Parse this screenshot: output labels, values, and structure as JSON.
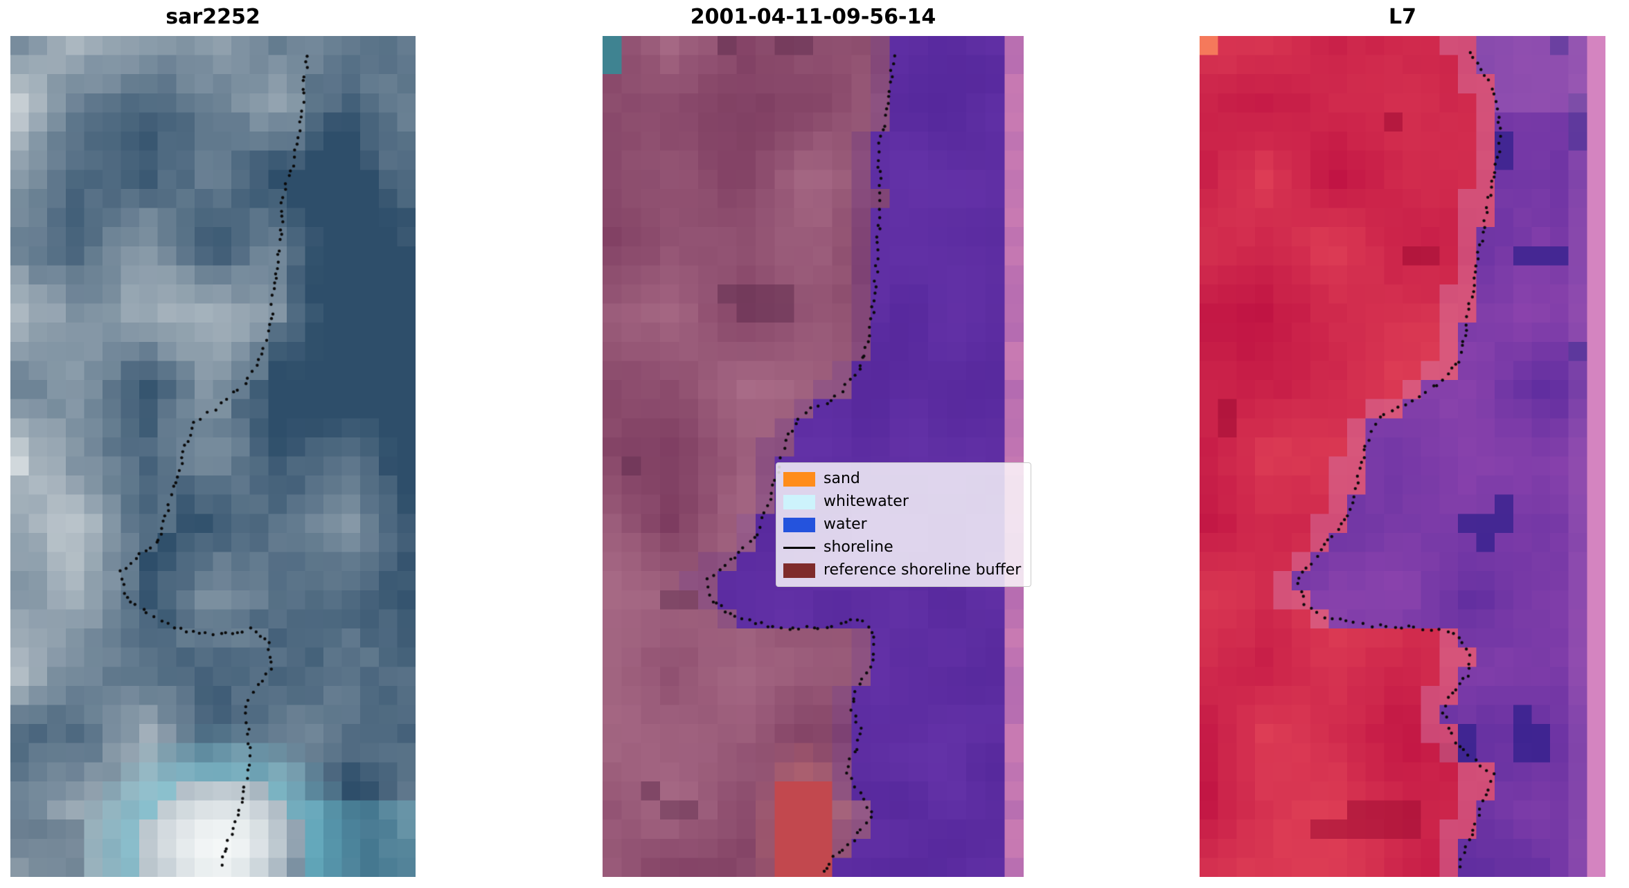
{
  "figure": {
    "background": "#ffffff",
    "panels": [
      {
        "id": "sar",
        "title": "sar2252",
        "seed": 101,
        "palette": {
          "dark": "#2e4e6a",
          "mid": "#5d7b92",
          "light": "#d2d8db",
          "white": "#f4f7f7",
          "cyan": "#7cd9e8",
          "deep": "#24405a"
        },
        "shoreline": [
          [
            0.735,
            0.022
          ],
          [
            0.725,
            0.06
          ],
          [
            0.715,
            0.105
          ],
          [
            0.7,
            0.145
          ],
          [
            0.672,
            0.19
          ],
          [
            0.668,
            0.235
          ],
          [
            0.662,
            0.27
          ],
          [
            0.648,
            0.315
          ],
          [
            0.638,
            0.355
          ],
          [
            0.615,
            0.385
          ],
          [
            0.585,
            0.41
          ],
          [
            0.5,
            0.445
          ],
          [
            0.455,
            0.458
          ],
          [
            0.43,
            0.49
          ],
          [
            0.4,
            0.545
          ],
          [
            0.365,
            0.6
          ],
          [
            0.3,
            0.625
          ],
          [
            0.272,
            0.638
          ],
          [
            0.283,
            0.665
          ],
          [
            0.33,
            0.685
          ],
          [
            0.385,
            0.7
          ],
          [
            0.45,
            0.71
          ],
          [
            0.52,
            0.712
          ],
          [
            0.6,
            0.705
          ],
          [
            0.638,
            0.72
          ],
          [
            0.645,
            0.748
          ],
          [
            0.6,
            0.78
          ],
          [
            0.578,
            0.8
          ],
          [
            0.59,
            0.838
          ],
          [
            0.588,
            0.868
          ],
          [
            0.575,
            0.905
          ],
          [
            0.55,
            0.94
          ],
          [
            0.528,
            0.975
          ],
          [
            0.52,
            0.99
          ]
        ]
      },
      {
        "id": "classified",
        "title": "2001-04-11-09-56-14",
        "seed": 202,
        "palette": {
          "land_dark": "#7c3b5f",
          "land_light": "#aa6d88",
          "land_deep": "#643051",
          "water": "#56289c",
          "water_light": "#6b37ad",
          "stripe": "#c87ab2",
          "teal": "#3f8391",
          "red": "#c2484e",
          "red_soft": "#bc6a6e"
        },
        "shoreline": [
          [
            0.69,
            0.025
          ],
          [
            0.685,
            0.06
          ],
          [
            0.672,
            0.1
          ],
          [
            0.655,
            0.13
          ],
          [
            0.658,
            0.165
          ],
          [
            0.662,
            0.195
          ],
          [
            0.655,
            0.235
          ],
          [
            0.652,
            0.27
          ],
          [
            0.645,
            0.31
          ],
          [
            0.638,
            0.345
          ],
          [
            0.625,
            0.375
          ],
          [
            0.605,
            0.4
          ],
          [
            0.545,
            0.435
          ],
          [
            0.478,
            0.448
          ],
          [
            0.44,
            0.478
          ],
          [
            0.415,
            0.52
          ],
          [
            0.39,
            0.565
          ],
          [
            0.355,
            0.6
          ],
          [
            0.3,
            0.625
          ],
          [
            0.25,
            0.645
          ],
          [
            0.262,
            0.672
          ],
          [
            0.31,
            0.69
          ],
          [
            0.38,
            0.7
          ],
          [
            0.46,
            0.705
          ],
          [
            0.55,
            0.702
          ],
          [
            0.615,
            0.692
          ],
          [
            0.648,
            0.715
          ],
          [
            0.638,
            0.745
          ],
          [
            0.605,
            0.775
          ],
          [
            0.592,
            0.8
          ],
          [
            0.615,
            0.825
          ],
          [
            0.6,
            0.85
          ],
          [
            0.578,
            0.872
          ],
          [
            0.612,
            0.9
          ],
          [
            0.64,
            0.925
          ],
          [
            0.6,
            0.955
          ],
          [
            0.545,
            0.98
          ],
          [
            0.52,
            0.995
          ]
        ],
        "legend": {
          "entries": [
            {
              "label": "sand",
              "type": "patch",
              "color": "#ff8c1a"
            },
            {
              "label": "whitewater",
              "type": "patch",
              "color": "#cdf3fc"
            },
            {
              "label": "water",
              "type": "patch",
              "color": "#2453dd"
            },
            {
              "label": "shoreline",
              "type": "line",
              "color": "#000000"
            },
            {
              "label": "reference shoreline buffer",
              "type": "patch",
              "color": "#7f2b2b"
            }
          ]
        }
      },
      {
        "id": "l7",
        "title": "L7",
        "seed": 303,
        "palette": {
          "land_dark": "#c01343",
          "land_light": "#e24458",
          "land_deep": "#a30e35",
          "pink": "#d77fae",
          "water_dark": "#5b2b9e",
          "water_light": "#9146ae",
          "navy": "#31208c",
          "stripe": "#d484c0",
          "orange": "#f5795b",
          "lilac": "#b571bd"
        },
        "shoreline": [
          [
            0.665,
            0.02
          ],
          [
            0.7,
            0.045
          ],
          [
            0.728,
            0.07
          ],
          [
            0.735,
            0.1
          ],
          [
            0.74,
            0.13
          ],
          [
            0.725,
            0.165
          ],
          [
            0.712,
            0.2
          ],
          [
            0.695,
            0.24
          ],
          [
            0.678,
            0.28
          ],
          [
            0.668,
            0.315
          ],
          [
            0.655,
            0.35
          ],
          [
            0.638,
            0.385
          ],
          [
            0.6,
            0.41
          ],
          [
            0.5,
            0.44
          ],
          [
            0.44,
            0.455
          ],
          [
            0.408,
            0.49
          ],
          [
            0.39,
            0.525
          ],
          [
            0.378,
            0.555
          ],
          [
            0.345,
            0.585
          ],
          [
            0.295,
            0.615
          ],
          [
            0.24,
            0.648
          ],
          [
            0.258,
            0.675
          ],
          [
            0.31,
            0.69
          ],
          [
            0.4,
            0.7
          ],
          [
            0.49,
            0.703
          ],
          [
            0.575,
            0.705
          ],
          [
            0.638,
            0.712
          ],
          [
            0.672,
            0.738
          ],
          [
            0.658,
            0.762
          ],
          [
            0.618,
            0.785
          ],
          [
            0.6,
            0.805
          ],
          [
            0.628,
            0.835
          ],
          [
            0.66,
            0.855
          ],
          [
            0.725,
            0.878
          ],
          [
            0.7,
            0.91
          ],
          [
            0.678,
            0.938
          ],
          [
            0.655,
            0.965
          ],
          [
            0.638,
            0.99
          ]
        ]
      }
    ]
  },
  "chart_data": {
    "type": "heatmap",
    "note": "Three-panel matplotlib-style figure of co-registered coastal satellite images; black dotted markers trace the detected shoreline in each panel.",
    "panels": [
      {
        "title": "sar2252",
        "content": "SAR backscatter image in blue-gray tones with bright whitewater patch at bottom and dotted shoreline"
      },
      {
        "title": "2001-04-11-09-56-14",
        "content": "Classified optical scene: mauve land/reference-buffer region at left, violet water at right, pink stripe at right edge, teal corner pixel, red sand patch at bottom, dotted shoreline, legend box"
      },
      {
        "title": "L7",
        "content": "Landsat 7 false-color scene: red land/buffer region at left, purple water with dark blue patches at right, pink stripe at right edge, orange corner pixel, dotted shoreline"
      }
    ],
    "legend": [
      "sand",
      "whitewater",
      "water",
      "shoreline",
      "reference shoreline buffer"
    ],
    "legend_colors": [
      "#ff8c1a",
      "#cdf3fc",
      "#2453dd",
      "#000000",
      "#7f2b2b"
    ]
  }
}
